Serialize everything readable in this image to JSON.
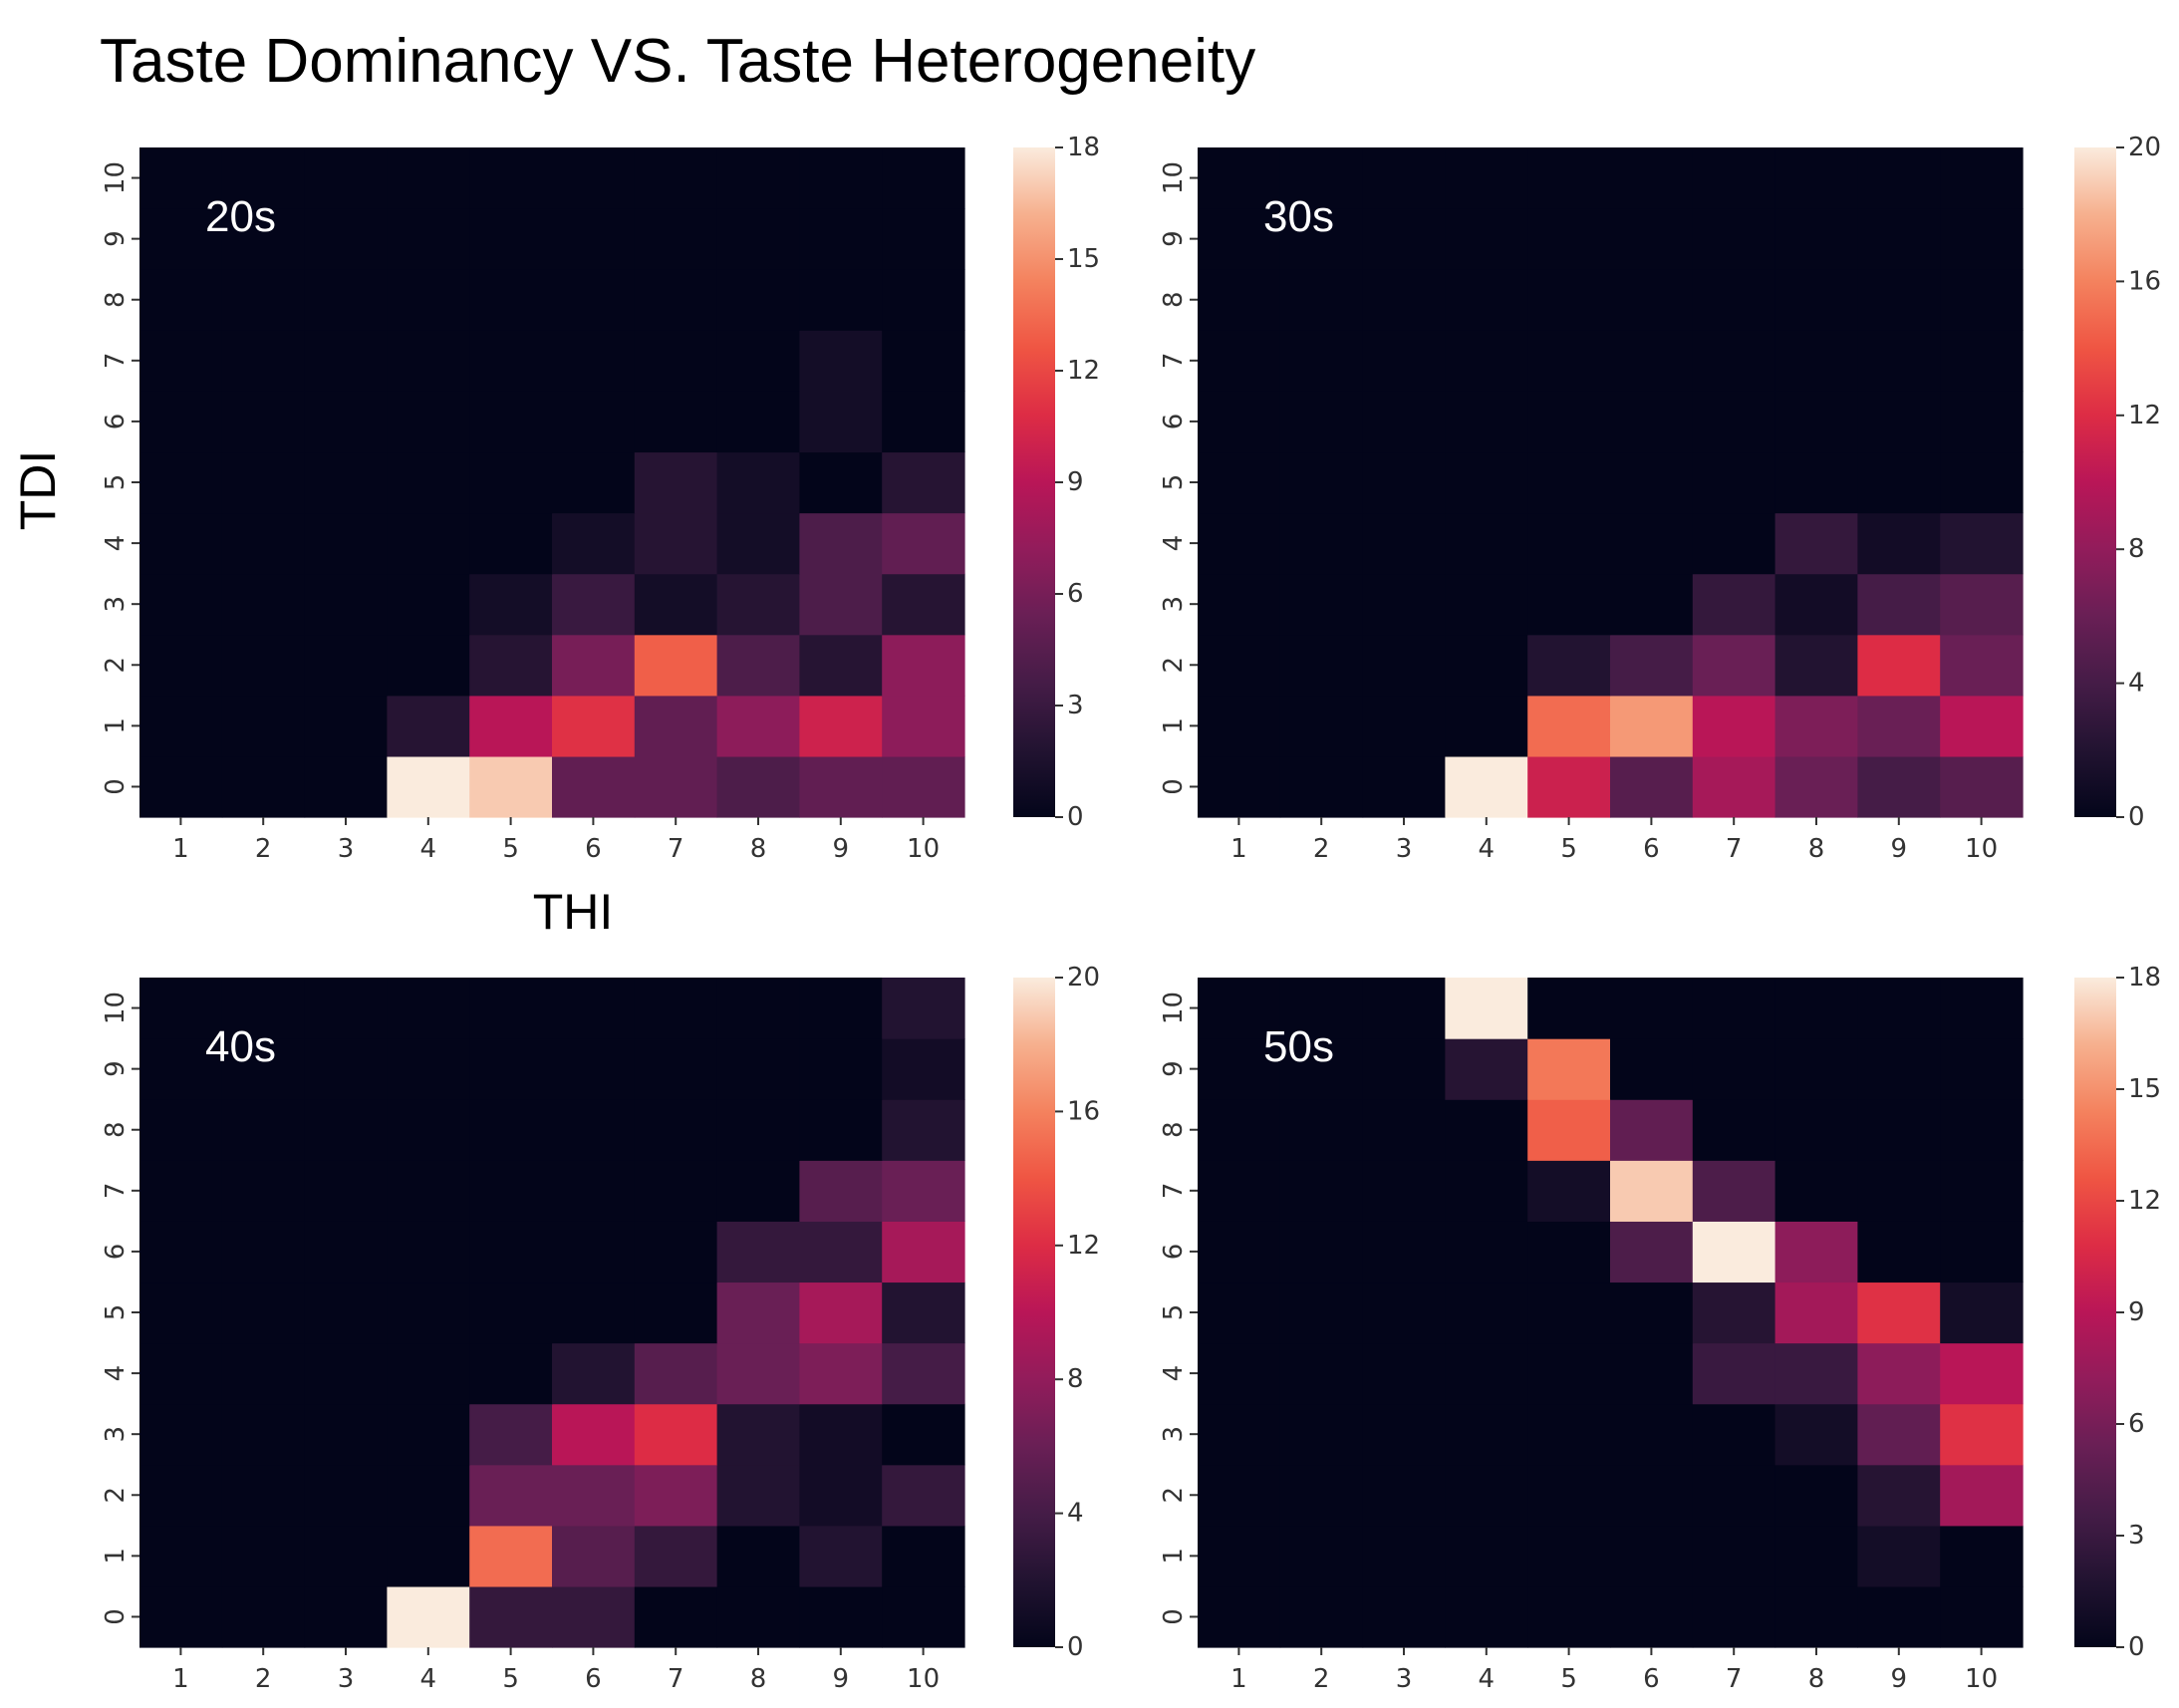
{
  "title": "Taste Dominancy VS. Taste Heterogeneity",
  "chart_data": [
    {
      "type": "heatmap",
      "panel_label": "20s",
      "xlabel": "THI",
      "ylabel": "TDI",
      "x_categories": [
        "1",
        "2",
        "3",
        "4",
        "5",
        "6",
        "7",
        "8",
        "9",
        "10"
      ],
      "y_categories": [
        "0",
        "1",
        "2",
        "3",
        "4",
        "5",
        "6",
        "7",
        "8",
        "9",
        "10"
      ],
      "colorbar_range": [
        0,
        18
      ],
      "colorbar_ticks": [
        "0",
        "3",
        "6",
        "9",
        "12",
        "15",
        "18"
      ],
      "values": [
        [
          0,
          0,
          0,
          18,
          17,
          5,
          5,
          4,
          5,
          5
        ],
        [
          0,
          0,
          0,
          2,
          9,
          11,
          5,
          7,
          10,
          7
        ],
        [
          0,
          0,
          0,
          0,
          2,
          6,
          13,
          4,
          2,
          7
        ],
        [
          0,
          0,
          0,
          0,
          1,
          3,
          1,
          2,
          4,
          2
        ],
        [
          0,
          0,
          0,
          0,
          0,
          1,
          2,
          1,
          4,
          5
        ],
        [
          0,
          0,
          0,
          0,
          0,
          0,
          2,
          1,
          0,
          2
        ],
        [
          0,
          0,
          0,
          0,
          0,
          0,
          0,
          0,
          1,
          0
        ],
        [
          0,
          0,
          0,
          0,
          0,
          0,
          0,
          0,
          1,
          0
        ],
        [
          0,
          0,
          0,
          0,
          0,
          0,
          0,
          0,
          0,
          0
        ],
        [
          0,
          0,
          0,
          0,
          0,
          0,
          0,
          0,
          0,
          0
        ],
        [
          0,
          0,
          0,
          0,
          0,
          0,
          0,
          0,
          0,
          0
        ]
      ]
    },
    {
      "type": "heatmap",
      "panel_label": "30s",
      "x_categories": [
        "1",
        "2",
        "3",
        "4",
        "5",
        "6",
        "7",
        "8",
        "9",
        "10"
      ],
      "y_categories": [
        "0",
        "1",
        "2",
        "3",
        "4",
        "5",
        "6",
        "7",
        "8",
        "9",
        "10"
      ],
      "colorbar_range": [
        0,
        20
      ],
      "colorbar_ticks": [
        "0",
        "4",
        "8",
        "12",
        "16",
        "20"
      ],
      "values": [
        [
          0,
          0,
          0,
          20,
          11,
          5,
          9,
          6,
          4,
          5
        ],
        [
          0,
          0,
          0,
          0,
          15,
          17,
          10,
          7,
          6,
          10
        ],
        [
          0,
          0,
          0,
          0,
          2,
          4,
          6,
          2,
          12,
          6
        ],
        [
          0,
          0,
          0,
          0,
          0,
          0,
          3,
          1,
          4,
          5
        ],
        [
          0,
          0,
          0,
          0,
          0,
          0,
          0,
          3,
          1,
          2
        ],
        [
          0,
          0,
          0,
          0,
          0,
          0,
          0,
          0,
          0,
          0
        ],
        [
          0,
          0,
          0,
          0,
          0,
          0,
          0,
          0,
          0,
          0
        ],
        [
          0,
          0,
          0,
          0,
          0,
          0,
          0,
          0,
          0,
          0
        ],
        [
          0,
          0,
          0,
          0,
          0,
          0,
          0,
          0,
          0,
          0
        ],
        [
          0,
          0,
          0,
          0,
          0,
          0,
          0,
          0,
          0,
          0
        ],
        [
          0,
          0,
          0,
          0,
          0,
          0,
          0,
          0,
          0,
          0
        ]
      ]
    },
    {
      "type": "heatmap",
      "panel_label": "40s",
      "x_categories": [
        "1",
        "2",
        "3",
        "4",
        "5",
        "6",
        "7",
        "8",
        "9",
        "10"
      ],
      "y_categories": [
        "0",
        "1",
        "2",
        "3",
        "4",
        "5",
        "6",
        "7",
        "8",
        "9",
        "10"
      ],
      "colorbar_range": [
        0,
        20
      ],
      "colorbar_ticks": [
        "0",
        "4",
        "8",
        "12",
        "16",
        "20"
      ],
      "values": [
        [
          0,
          0,
          0,
          20,
          3,
          3,
          0,
          0,
          0,
          0
        ],
        [
          0,
          0,
          0,
          0,
          15,
          5,
          3,
          0,
          2,
          0
        ],
        [
          0,
          0,
          0,
          0,
          6,
          6,
          7,
          2,
          1,
          3
        ],
        [
          0,
          0,
          0,
          0,
          4,
          10,
          12,
          2,
          1,
          0
        ],
        [
          0,
          0,
          0,
          0,
          0,
          2,
          5,
          6,
          7,
          4
        ],
        [
          0,
          0,
          0,
          0,
          0,
          0,
          0,
          6,
          9,
          2
        ],
        [
          0,
          0,
          0,
          0,
          0,
          0,
          0,
          3,
          3,
          9
        ],
        [
          0,
          0,
          0,
          0,
          0,
          0,
          0,
          0,
          5,
          6
        ],
        [
          0,
          0,
          0,
          0,
          0,
          0,
          0,
          0,
          0,
          2
        ],
        [
          0,
          0,
          0,
          0,
          0,
          0,
          0,
          0,
          0,
          1
        ],
        [
          0,
          0,
          0,
          0,
          0,
          0,
          0,
          0,
          0,
          2
        ]
      ]
    },
    {
      "type": "heatmap",
      "panel_label": "50s",
      "x_categories": [
        "1",
        "2",
        "3",
        "4",
        "5",
        "6",
        "7",
        "8",
        "9",
        "10"
      ],
      "y_categories": [
        "0",
        "1",
        "2",
        "3",
        "4",
        "5",
        "6",
        "7",
        "8",
        "9",
        "10"
      ],
      "colorbar_range": [
        0,
        18
      ],
      "colorbar_ticks": [
        "0",
        "3",
        "6",
        "9",
        "12",
        "15",
        "18"
      ],
      "values": [
        [
          0,
          0,
          0,
          0,
          0,
          0,
          0,
          0,
          0,
          0
        ],
        [
          0,
          0,
          0,
          0,
          0,
          0,
          0,
          0,
          1,
          0
        ],
        [
          0,
          0,
          0,
          0,
          0,
          0,
          0,
          0,
          2,
          8
        ],
        [
          0,
          0,
          0,
          0,
          0,
          0,
          0,
          1,
          5,
          11
        ],
        [
          0,
          0,
          0,
          0,
          0,
          0,
          3,
          3,
          7,
          9
        ],
        [
          0,
          0,
          0,
          0,
          0,
          0,
          2,
          8,
          11,
          1
        ],
        [
          0,
          0,
          0,
          0,
          0,
          4,
          18,
          7,
          0,
          0
        ],
        [
          0,
          0,
          0,
          0,
          1,
          17,
          4,
          0,
          0,
          0
        ],
        [
          0,
          0,
          0,
          0,
          13,
          5,
          0,
          0,
          0,
          0
        ],
        [
          0,
          0,
          0,
          2,
          14,
          0,
          0,
          0,
          0,
          0
        ],
        [
          0,
          0,
          0,
          18,
          0,
          0,
          0,
          0,
          0,
          0
        ]
      ]
    }
  ]
}
